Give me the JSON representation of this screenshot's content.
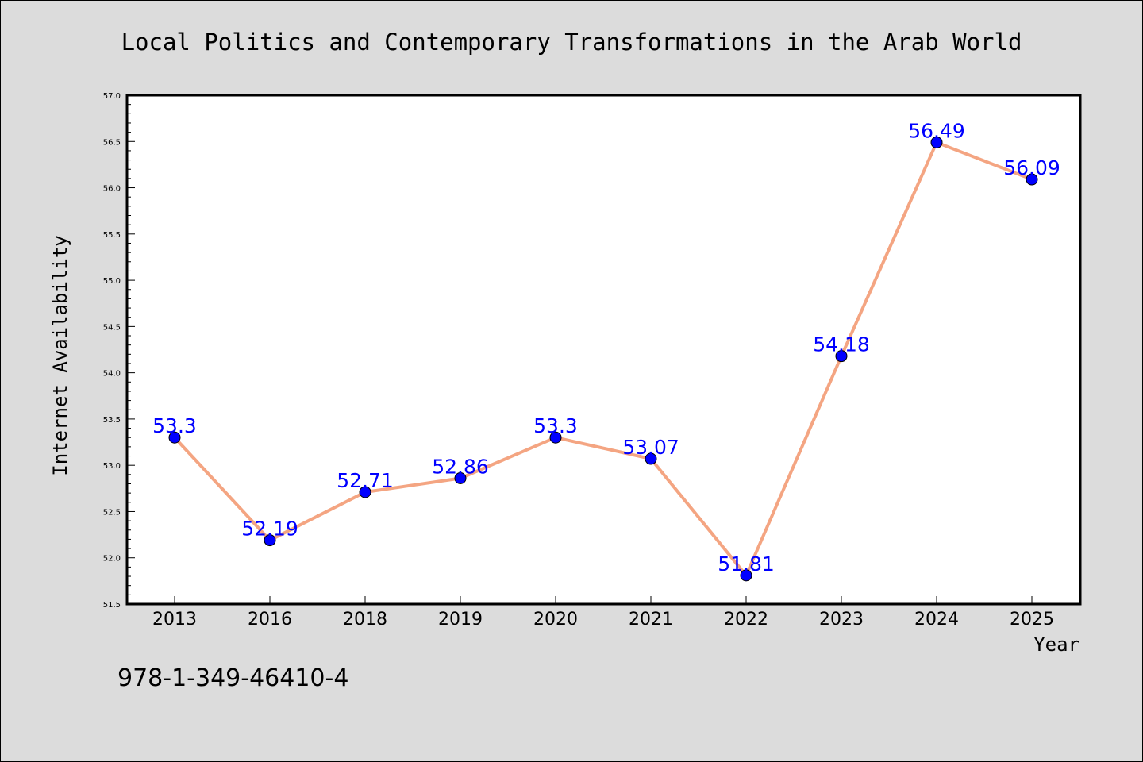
{
  "chart_data": {
    "type": "line",
    "title": "Local Politics and Contemporary Transformations in the Arab World",
    "xlabel": "Year",
    "ylabel": "Internet Availability",
    "categories": [
      "2013",
      "2016",
      "2018",
      "2019",
      "2020",
      "2021",
      "2022",
      "2023",
      "2024",
      "2025"
    ],
    "values": [
      53.3,
      52.19,
      52.71,
      52.86,
      53.3,
      53.07,
      51.81,
      54.18,
      56.49,
      56.09
    ],
    "data_labels": [
      "53.3",
      "52.19",
      "52.71",
      "52.86",
      "53.3",
      "53.07",
      "51.81",
      "54.18",
      "56.49",
      "56.09"
    ],
    "ylim": [
      51.5,
      57.0
    ],
    "yticks": [
      "51.5",
      "52.0",
      "52.5",
      "53.0",
      "53.5",
      "54.0",
      "54.5",
      "55.0",
      "55.5",
      "56.0",
      "56.5",
      "57.0"
    ],
    "grid": false,
    "line_color": "#f4a582",
    "marker_color": "#0000ff",
    "label_color": "#0000ff"
  },
  "footer": {
    "isbn": "978-1-349-46410-4"
  }
}
